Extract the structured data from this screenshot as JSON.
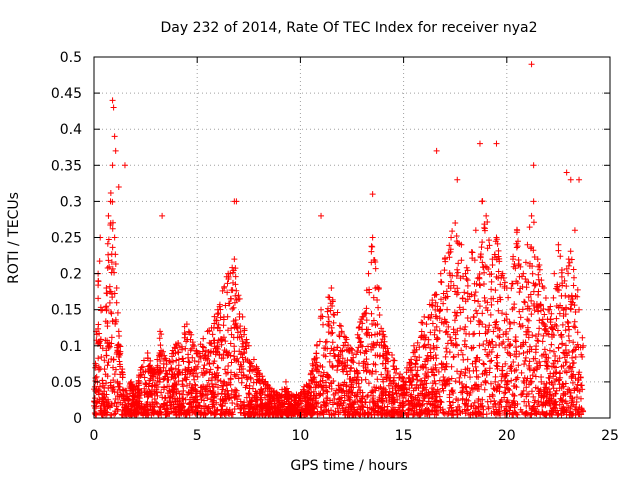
{
  "chart_data": {
    "type": "scatter",
    "title": "Day 232 of 2014, Rate Of TEC Index for receiver nya2",
    "xlabel": "GPS time / hours",
    "ylabel": "ROTI / TECUs",
    "xlim": [
      0,
      25
    ],
    "ylim": [
      0,
      0.5
    ],
    "grid": true,
    "marker": "+",
    "color": "#ff0000",
    "x_ticks": [
      0,
      5,
      10,
      15,
      20,
      25
    ],
    "y_ticks": [
      0,
      0.05,
      0.1,
      0.15,
      0.2,
      0.25,
      0.3,
      0.35,
      0.4,
      0.45,
      0.5
    ],
    "x_tick_labels": [
      "0",
      "5",
      "10",
      "15",
      "20",
      "25"
    ],
    "y_tick_labels": [
      "0",
      "0.05",
      "0.1",
      "0.15",
      "0.2",
      "0.25",
      "0.3",
      "0.35",
      "0.4",
      "0.45",
      "0.5"
    ],
    "series": [
      {
        "name": "ROTI",
        "x": [
          0.0,
          0.1,
          0.2,
          0.3,
          0.4,
          0.5,
          0.6,
          0.7,
          0.8,
          0.9,
          1.0,
          1.1,
          1.2,
          1.4,
          1.6,
          1.8,
          2.0,
          2.3,
          2.6,
          3.0,
          3.2,
          3.5,
          4.0,
          4.5,
          5.0,
          5.5,
          6.0,
          6.3,
          6.5,
          6.8,
          7.0,
          7.2,
          7.5,
          8.0,
          8.5,
          9.0,
          9.3,
          9.5,
          10.0,
          10.5,
          10.8,
          11.0,
          11.5,
          12.0,
          12.5,
          13.0,
          13.3,
          13.5,
          13.8,
          14.0,
          14.5,
          15.0,
          15.5,
          16.0,
          16.5,
          16.8,
          17.0,
          17.3,
          17.5,
          17.8,
          18.0,
          18.3,
          18.5,
          18.8,
          19.0,
          19.3,
          19.5,
          19.8,
          20.0,
          20.3,
          20.5,
          20.8,
          21.0,
          21.2,
          21.3,
          21.5,
          21.8,
          22.0,
          22.3,
          22.5,
          22.8,
          23.0,
          23.3,
          23.5,
          23.7,
          0.9,
          0.95,
          1.0,
          1.05,
          1.2,
          1.5,
          3.3,
          6.8,
          6.9,
          11.0,
          13.5,
          16.6,
          17.6,
          18.7,
          19.5,
          21.2,
          21.3,
          22.9,
          23.1,
          23.5
        ],
        "y": [
          0.04,
          0.12,
          0.2,
          0.25,
          0.15,
          0.08,
          0.18,
          0.28,
          0.3,
          0.35,
          0.25,
          0.18,
          0.12,
          0.06,
          0.03,
          0.05,
          0.04,
          0.07,
          0.09,
          0.06,
          0.12,
          0.08,
          0.1,
          0.13,
          0.09,
          0.12,
          0.15,
          0.18,
          0.2,
          0.22,
          0.17,
          0.14,
          0.1,
          0.06,
          0.04,
          0.03,
          0.05,
          0.02,
          0.03,
          0.06,
          0.1,
          0.15,
          0.18,
          0.12,
          0.09,
          0.14,
          0.2,
          0.25,
          0.18,
          0.12,
          0.08,
          0.05,
          0.1,
          0.14,
          0.17,
          0.2,
          0.22,
          0.25,
          0.27,
          0.24,
          0.2,
          0.23,
          0.26,
          0.3,
          0.28,
          0.22,
          0.25,
          0.2,
          0.18,
          0.22,
          0.26,
          0.2,
          0.24,
          0.28,
          0.3,
          0.22,
          0.18,
          0.15,
          0.2,
          0.24,
          0.19,
          0.22,
          0.26,
          0.15,
          0.1,
          0.44,
          0.43,
          0.39,
          0.37,
          0.32,
          0.35,
          0.28,
          0.3,
          0.3,
          0.28,
          0.31,
          0.37,
          0.33,
          0.38,
          0.38,
          0.49,
          0.35,
          0.34,
          0.33,
          0.33
        ]
      }
    ]
  }
}
